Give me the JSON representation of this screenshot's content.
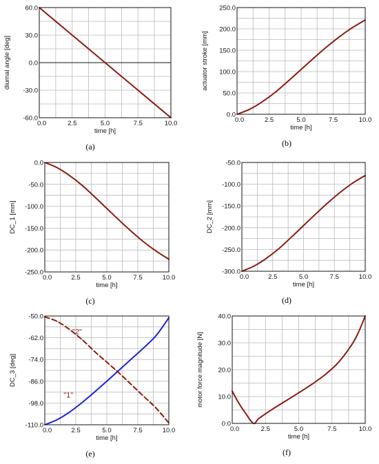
{
  "chart_data": [
    {
      "id": "a",
      "type": "line",
      "caption": "(a)",
      "xlabel": "time [h]",
      "ylabel": "diurnal angle [deg]",
      "xlim": [
        0,
        10
      ],
      "ylim": [
        -60,
        60
      ],
      "xticks": [
        "0.0",
        "2.5",
        "5.0",
        "7.5",
        "10.0"
      ],
      "yticks": [
        "-60.0",
        "-30.0",
        "0.0",
        "30.0",
        "60.0"
      ],
      "zero_line": true,
      "grid": true,
      "series": [
        {
          "color": "#8b1a10",
          "style": "solid",
          "x": [
            0,
            2.5,
            5,
            7.5,
            10
          ],
          "y": [
            60,
            30,
            0,
            -30,
            -60
          ]
        }
      ]
    },
    {
      "id": "b",
      "type": "line",
      "caption": "(b)",
      "xlabel": "time [h]",
      "ylabel": "actuator stroke [mm]",
      "xlim": [
        0,
        10
      ],
      "ylim": [
        0,
        250
      ],
      "xticks": [
        "0.0",
        "2.5",
        "5.0",
        "7.5",
        "10.0"
      ],
      "yticks": [
        "0.0",
        "50.0",
        "100.0",
        "150.0",
        "200.0",
        "250.0"
      ],
      "grid": true,
      "series": [
        {
          "color": "#8b1a10",
          "style": "solid",
          "x": [
            0,
            1,
            2,
            3,
            4,
            5,
            6,
            7,
            8,
            9,
            10
          ],
          "y": [
            0,
            12,
            30,
            52,
            78,
            105,
            132,
            158,
            182,
            203,
            221
          ]
        }
      ]
    },
    {
      "id": "c",
      "type": "line",
      "caption": "(c)",
      "xlabel": "time [h]",
      "ylabel": "DC_1 [mm]",
      "xlim": [
        0,
        10
      ],
      "ylim": [
        -250,
        0
      ],
      "xticks": [
        "0.0",
        "2.5",
        "5.0",
        "7.5",
        "10.0"
      ],
      "yticks": [
        "-250.0",
        "-200.0",
        "-150.0",
        "-100.0",
        "-50.0",
        "0.0"
      ],
      "grid": true,
      "series": [
        {
          "color": "#8b1a10",
          "style": "solid",
          "x": [
            0,
            1,
            2,
            3,
            4,
            5,
            6,
            7,
            8,
            9,
            10
          ],
          "y": [
            0,
            -12,
            -30,
            -52,
            -78,
            -105,
            -132,
            -158,
            -182,
            -203,
            -221
          ]
        }
      ]
    },
    {
      "id": "d",
      "type": "line",
      "caption": "(d)",
      "xlabel": "time [h]",
      "ylabel": "DC_2 [mm]",
      "xlim": [
        0,
        10
      ],
      "ylim": [
        -300,
        -50
      ],
      "xticks": [
        "0.0",
        "2.5",
        "5.0",
        "7.5",
        "10.0"
      ],
      "yticks": [
        "-300.0",
        "-250.0",
        "-200.0",
        "-150.0",
        "-100.0",
        "-50.0"
      ],
      "grid": true,
      "series": [
        {
          "color": "#8b1a10",
          "style": "solid",
          "x": [
            0,
            1,
            2,
            3,
            4,
            5,
            6,
            7,
            8,
            9,
            10
          ],
          "y": [
            -300,
            -288,
            -270,
            -248,
            -222,
            -195,
            -168,
            -142,
            -118,
            -97,
            -80
          ]
        }
      ]
    },
    {
      "id": "e",
      "type": "line",
      "caption": "(e)",
      "xlabel": "time [h]",
      "ylabel": "DC_3 [deg]",
      "xlim": [
        0,
        10
      ],
      "ylim": [
        -110,
        -50
      ],
      "xticks": [
        "0.0",
        "2.5",
        "5.0",
        "7.5",
        "10.0"
      ],
      "yticks": [
        "-110.0",
        "-98.0",
        "-86.0",
        "-74.0",
        "-62.0",
        "-50.0"
      ],
      "grid": true,
      "annotations": [
        {
          "text": "\"2\"",
          "x": 2.6,
          "y": -60
        },
        {
          "text": "\"1\"",
          "x": 1.9,
          "y": -95
        }
      ],
      "series": [
        {
          "name": "\"1\"",
          "color": "#1c22d6",
          "style": "solid",
          "x": [
            0,
            1,
            2,
            3,
            4,
            5,
            6,
            7,
            8,
            9,
            10
          ],
          "y": [
            -110,
            -107.2,
            -103,
            -97.8,
            -92,
            -86,
            -79.8,
            -73.6,
            -67.4,
            -60.6,
            -51
          ]
        },
        {
          "name": "\"2\"",
          "color": "#8b1a10",
          "style": "dashed",
          "x": [
            0,
            1,
            2,
            3,
            4,
            5,
            6,
            7,
            8,
            9,
            10
          ],
          "y": [
            -50.5,
            -53,
            -57.5,
            -63,
            -69.5,
            -75.5,
            -81.5,
            -88,
            -94.5,
            -101,
            -109
          ]
        }
      ]
    },
    {
      "id": "f",
      "type": "line",
      "caption": "(f)",
      "xlabel": "time [h]",
      "ylabel": "motor force magnitude [N]",
      "xlim": [
        0,
        10
      ],
      "ylim": [
        0,
        40
      ],
      "xticks": [
        "0.0",
        "2.5",
        "5.0",
        "7.5",
        "10.0"
      ],
      "yticks": [
        "0.0",
        "10.0",
        "20.0",
        "30.0",
        "40.0"
      ],
      "grid": true,
      "series": [
        {
          "color": "#8b1a10",
          "style": "solid",
          "x": [
            0,
            0.5,
            1.0,
            1.6,
            2.0,
            3.0,
            4.0,
            5.0,
            6.0,
            7.0,
            8.0,
            9.0,
            9.5,
            10.0
          ],
          "y": [
            12,
            7.5,
            3.8,
            0,
            1.8,
            5.2,
            8.3,
            11.4,
            14.6,
            18.2,
            22.8,
            29.4,
            34,
            40
          ]
        }
      ]
    }
  ]
}
